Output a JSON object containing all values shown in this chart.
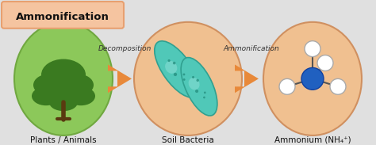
{
  "title": "Ammonification",
  "title_box_color": "#F5C4A0",
  "title_box_edge_color": "#E8A070",
  "title_text_color": "#111111",
  "background_color": "#E0E0E0",
  "circle_plants_color": "#8CC85A",
  "circle_plants_edge": "#70A840",
  "circle_bacteria_color": "#F0C090",
  "circle_bacteria_edge": "#D09060",
  "circle_ammonium_color": "#F0C090",
  "circle_ammonium_edge": "#D09060",
  "arrow_color": "#E8893A",
  "tree_trunk_color": "#5A3A10",
  "tree_foliage_color": "#3A7A20",
  "bacteria_body_color": "#50C8B8",
  "bacteria_edge_color": "#30A090",
  "bacteria_spot_color": "#208878",
  "bacteria_light_color": "#90E0D8",
  "nitrogen_color": "#2060C0",
  "nitrogen_edge_color": "#1040A0",
  "hydrogen_color": "#FFFFFF",
  "hydrogen_edge_color": "#AAAAAA",
  "bond_color": "#555555",
  "label_decomposition": "Decomposition",
  "label_ammonification": "Ammonification",
  "label_plants": "Plants / Animals",
  "label_bacteria": "Soil Bacteria",
  "label_ammonium": "Ammonium (NH₄⁺)"
}
